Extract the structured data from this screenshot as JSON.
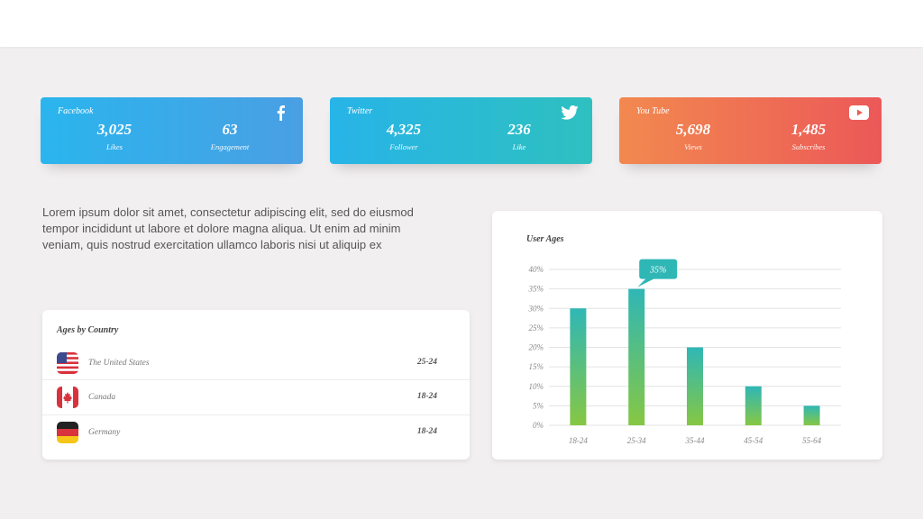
{
  "cards": [
    {
      "name": "Facebook",
      "icon": "facebook-icon",
      "metrics": [
        {
          "value": "3,025",
          "label": "Likes"
        },
        {
          "value": "63",
          "label": "Engagement"
        }
      ]
    },
    {
      "name": "Twitter",
      "icon": "twitter-icon",
      "metrics": [
        {
          "value": "4,325",
          "label": "Follower"
        },
        {
          "value": "236",
          "label": "Like"
        }
      ]
    },
    {
      "name": "You Tube",
      "icon": "youtube-icon",
      "metrics": [
        {
          "value": "5,698",
          "label": "Views"
        },
        {
          "value": "1,485",
          "label": "Subscribes"
        }
      ]
    }
  ],
  "description": "Lorem ipsum dolor sit amet, consectetur adipiscing elit, sed do eiusmod tempor incididunt ut labore et dolore magna aliqua. Ut enim ad minim veniam, quis nostrud exercitation ullamco laboris nisi ut aliquip ex",
  "countries": {
    "title": "Ages by Country",
    "rows": [
      {
        "name": "The United States",
        "age": "25-24",
        "flag": "us-flag-icon"
      },
      {
        "name": "Canada",
        "age": "18-24",
        "flag": "canada-flag-icon"
      },
      {
        "name": "Germany",
        "age": "18-24",
        "flag": "germany-flag-icon"
      }
    ]
  },
  "colors": {
    "bar_top": "#2fb7b6",
    "bar_bottom": "#86c743",
    "callout": "#2fb7b6"
  },
  "chart_data": {
    "type": "bar",
    "title": "User Ages",
    "categories": [
      "18-24",
      "25-34",
      "35-44",
      "45-54",
      "55-64"
    ],
    "values": [
      30,
      35,
      20,
      10,
      5
    ],
    "ylim": [
      0,
      40
    ],
    "yticks": [
      "0%",
      "5%",
      "10%",
      "15%",
      "20%",
      "25%",
      "30%",
      "35%",
      "40%"
    ],
    "callout": {
      "category": "25-34",
      "label": "35%"
    },
    "grid": true,
    "xlabel": "",
    "ylabel": ""
  }
}
